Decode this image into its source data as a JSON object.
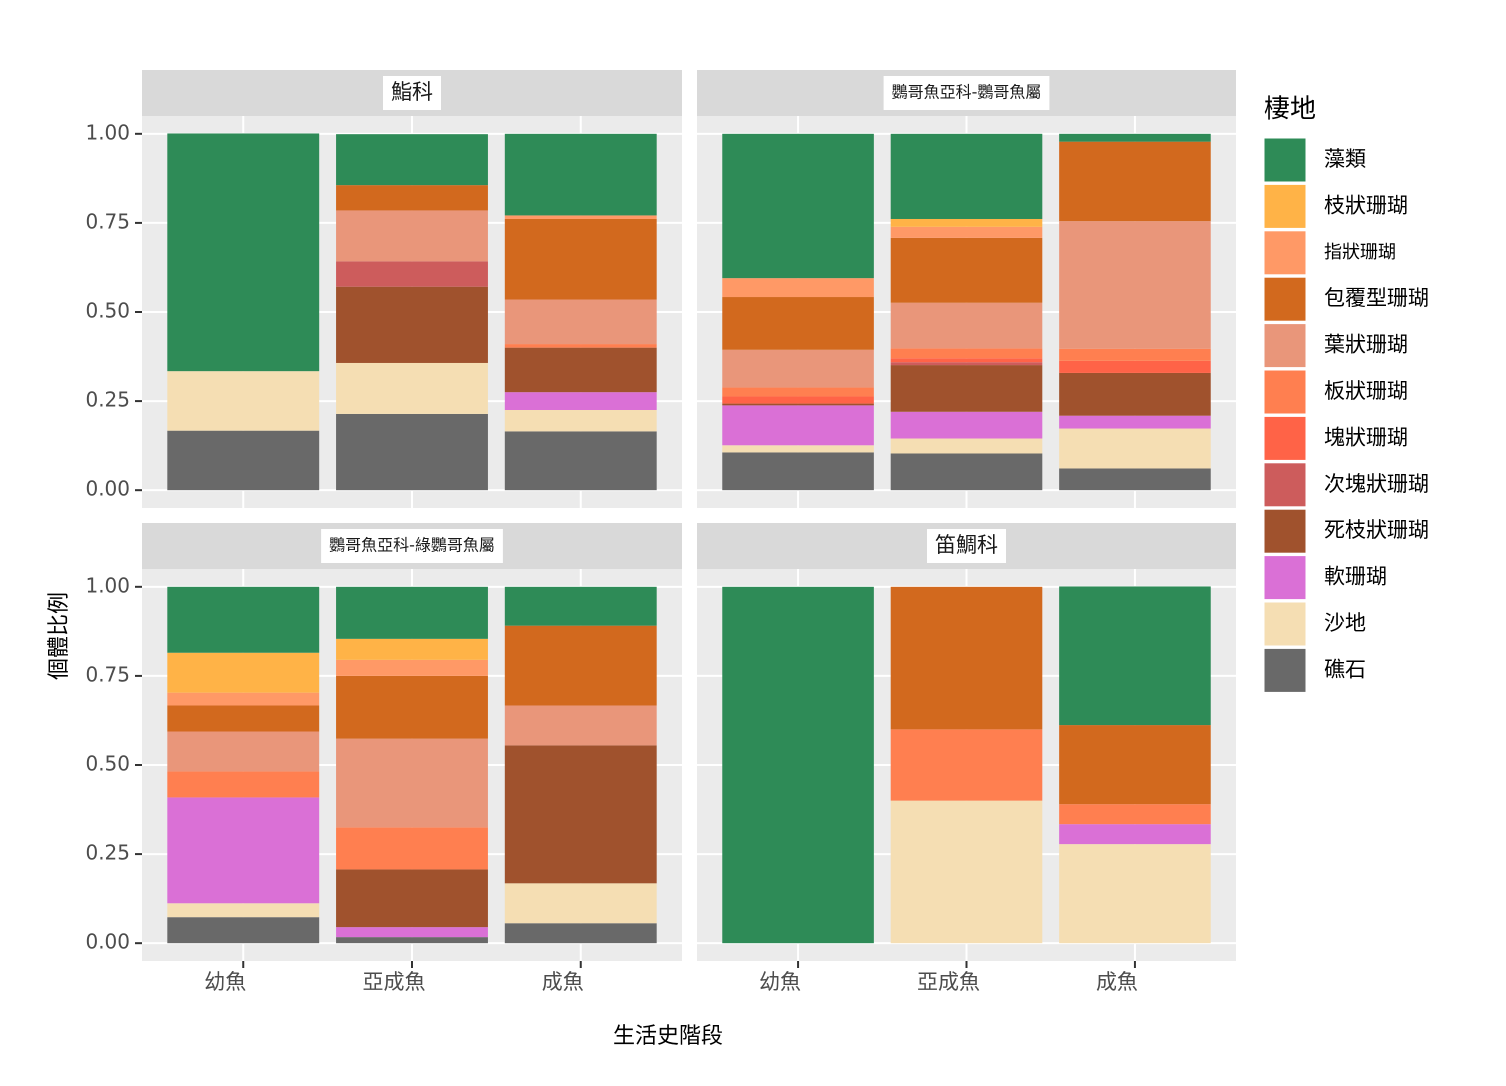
{
  "chart_data": {
    "type": "bar",
    "stacked": true,
    "facets": [
      "鮨科",
      "鸚哥魚亞科-鸚哥魚屬",
      "鸚哥魚亞科-綠鸚哥魚屬",
      "笛鯛科"
    ],
    "categories": [
      "幼魚",
      "亞成魚",
      "成魚"
    ],
    "xlabel": "生活史階段",
    "ylabel": "個體比例",
    "legend_title": "棲地",
    "ylim": [
      -0.05,
      1.05
    ],
    "yticks": [
      {
        "value": 0,
        "label": "0.00"
      },
      {
        "value": 0.25,
        "label": "0.25"
      },
      {
        "value": 0.5,
        "label": "0.50"
      },
      {
        "value": 0.75,
        "label": "0.75"
      },
      {
        "value": 1,
        "label": "1.00"
      }
    ],
    "grid": true,
    "series": [
      {
        "name": "藻類",
        "color": "#2e8b57",
        "values": [
          [
            0.667,
            0.143,
            0.229
          ],
          [
            0.405,
            0.239,
            0.022
          ],
          [
            0.185,
            0.146,
            0.109
          ],
          [
            1,
            0,
            0.389
          ]
        ]
      },
      {
        "name": "枝狀珊瑚",
        "color": "#ffb347",
        "values": [
          [
            0,
            0,
            0
          ],
          [
            0,
            0.022,
            0
          ],
          [
            0.112,
            0.059,
            0
          ],
          [
            0,
            0,
            0
          ]
        ]
      },
      {
        "name": "指狀珊瑚",
        "color": "#ff9966",
        "values": [
          [
            0,
            0,
            0.01
          ],
          [
            0.053,
            0.031,
            0
          ],
          [
            0.036,
            0.045,
            0
          ],
          [
            0,
            0,
            0
          ]
        ]
      },
      {
        "name": "包覆型珊瑚",
        "color": "#d2691e",
        "values": [
          [
            0,
            0.071,
            0.226
          ],
          [
            0.148,
            0.182,
            0.223
          ],
          [
            0.073,
            0.176,
            0.224
          ],
          [
            0,
            0.4,
            0.222
          ]
        ]
      },
      {
        "name": "葉狀珊瑚",
        "color": "#e9967a",
        "values": [
          [
            0,
            0.143,
            0.125
          ],
          [
            0.106,
            0.128,
            0.358
          ],
          [
            0.112,
            0.249,
            0.112
          ],
          [
            0,
            0,
            0
          ]
        ]
      },
      {
        "name": "板狀珊瑚",
        "color": "#ff7f50",
        "values": [
          [
            0,
            0,
            0.01
          ],
          [
            0.025,
            0.028,
            0.034
          ],
          [
            0.073,
            0.118,
            0
          ],
          [
            0,
            0.2,
            0.056
          ]
        ]
      },
      {
        "name": "塊狀珊瑚",
        "color": "#ff6347",
        "values": [
          [
            0,
            0,
            0
          ],
          [
            0.02,
            0.011,
            0.034
          ],
          [
            0,
            0,
            0
          ],
          [
            0,
            0,
            0
          ]
        ]
      },
      {
        "name": "次塊狀珊瑚",
        "color": "#cd5c5c",
        "values": [
          [
            0,
            0.071,
            0
          ],
          [
            0,
            0.008,
            0
          ],
          [
            0,
            0,
            0
          ],
          [
            0,
            0,
            0
          ]
        ]
      },
      {
        "name": "死枝狀珊瑚",
        "color": "#a0522d",
        "values": [
          [
            0,
            0.214,
            0.125
          ],
          [
            0.005,
            0.131,
            0.12
          ],
          [
            0,
            0.162,
            0.387
          ],
          [
            0,
            0,
            0
          ]
        ]
      },
      {
        "name": "軟珊瑚",
        "color": "#da70d6",
        "values": [
          [
            0,
            0,
            0.05
          ],
          [
            0.112,
            0.075,
            0.036
          ],
          [
            0.297,
            0.028,
            0
          ],
          [
            0,
            0,
            0.056
          ]
        ]
      },
      {
        "name": "沙地",
        "color": "#f5deb3",
        "values": [
          [
            0.167,
            0.143,
            0.06
          ],
          [
            0.02,
            0.042,
            0.112
          ],
          [
            0.039,
            0,
            0.112
          ],
          [
            0,
            0.4,
            0.278
          ]
        ]
      },
      {
        "name": "礁石",
        "color": "#696969",
        "values": [
          [
            0.167,
            0.214,
            0.165
          ],
          [
            0.106,
            0.103,
            0.061
          ],
          [
            0.073,
            0.017,
            0.056
          ],
          [
            0,
            0,
            0
          ]
        ]
      }
    ]
  }
}
